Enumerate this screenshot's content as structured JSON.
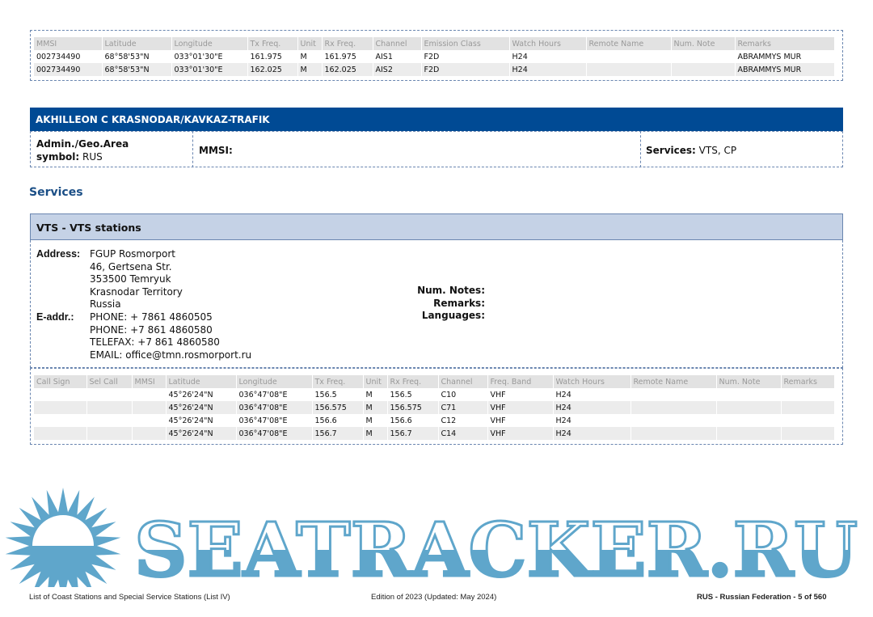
{
  "top_table": {
    "headers": [
      "MMSI",
      "Latitude",
      "Longitude",
      "Tx Freq.",
      "Unit",
      "Rx Freq.",
      "Channel",
      "Emission Class",
      "Watch Hours",
      "Remote Name",
      "Num. Note",
      "Remarks"
    ],
    "rows": [
      [
        "002734490",
        "68°58'53\"N",
        "033°01'30\"E",
        "161.975",
        "M",
        "161.975",
        "AIS1",
        "F2D",
        "H24",
        "",
        "",
        "ABRAMMYS MUR"
      ],
      [
        "002734490",
        "68°58'53\"N",
        "033°01'30\"E",
        "162.025",
        "M",
        "162.025",
        "AIS2",
        "F2D",
        "H24",
        "",
        "",
        "ABRAMMYS MUR"
      ]
    ]
  },
  "station": {
    "title": "AKHILLEON C KRASNODAR/KAVKAZ-TRAFIK",
    "admin_label": "Admin./Geo.Area",
    "symbol_label": "symbol:",
    "symbol_value": "RUS",
    "mmsi_label": "MMSI:",
    "services_label": "Services:",
    "services_value": "VTS, CP"
  },
  "services_heading": "Services",
  "vts": {
    "title": "VTS - VTS stations",
    "address_label": "Address:",
    "address_lines": [
      "FGUP Rosmorport",
      "46, Gertsena Str.",
      "353500 Temryuk",
      "Krasnodar Territory",
      "Russia"
    ],
    "eaddr_label": "E-addr.:",
    "eaddr_lines": [
      "PHONE: + 7861 4860505",
      "PHONE: +7 861 4860580",
      "TELEFAX: +7 861 4860580",
      "EMAIL: office@tmn.rosmorport.ru"
    ],
    "num_notes_label": "Num. Notes:",
    "remarks_label": "Remarks:",
    "languages_label": "Languages:",
    "table": {
      "headers": [
        "Call Sign",
        "Sel Call",
        "MMSI",
        "Latitude",
        "Longitude",
        "Tx Freq.",
        "Unit",
        "Rx Freq.",
        "Channel",
        "Freq. Band",
        "Watch Hours",
        "Remote Name",
        "Num. Note",
        "Remarks"
      ],
      "rows": [
        [
          "",
          "",
          "",
          "45°26'24\"N",
          "036°47'08\"E",
          "156.5",
          "M",
          "156.5",
          "C10",
          "VHF",
          "H24",
          "",
          "",
          ""
        ],
        [
          "",
          "",
          "",
          "45°26'24\"N",
          "036°47'08\"E",
          "156.575",
          "M",
          "156.575",
          "C71",
          "VHF",
          "H24",
          "",
          "",
          ""
        ],
        [
          "",
          "",
          "",
          "45°26'24\"N",
          "036°47'08\"E",
          "156.6",
          "M",
          "156.6",
          "C12",
          "VHF",
          "H24",
          "",
          "",
          ""
        ],
        [
          "",
          "",
          "",
          "45°26'24\"N",
          "036°47'08\"E",
          "156.7",
          "M",
          "156.7",
          "C14",
          "VHF",
          "H24",
          "",
          "",
          ""
        ]
      ]
    }
  },
  "footer": {
    "left": "List of Coast Stations and Special Service Stations (List IV)",
    "center": "Edition of 2023 (Updated: May 2024)",
    "right": "RUS - Russian Federation - 5 of 560"
  },
  "watermark": {
    "text": "SEATRACKER.RU",
    "color": "#5fa6cb"
  },
  "colors": {
    "header_bar": "#004a94",
    "sub_bar": "#c5d2e6",
    "heading": "#1a4e86"
  }
}
